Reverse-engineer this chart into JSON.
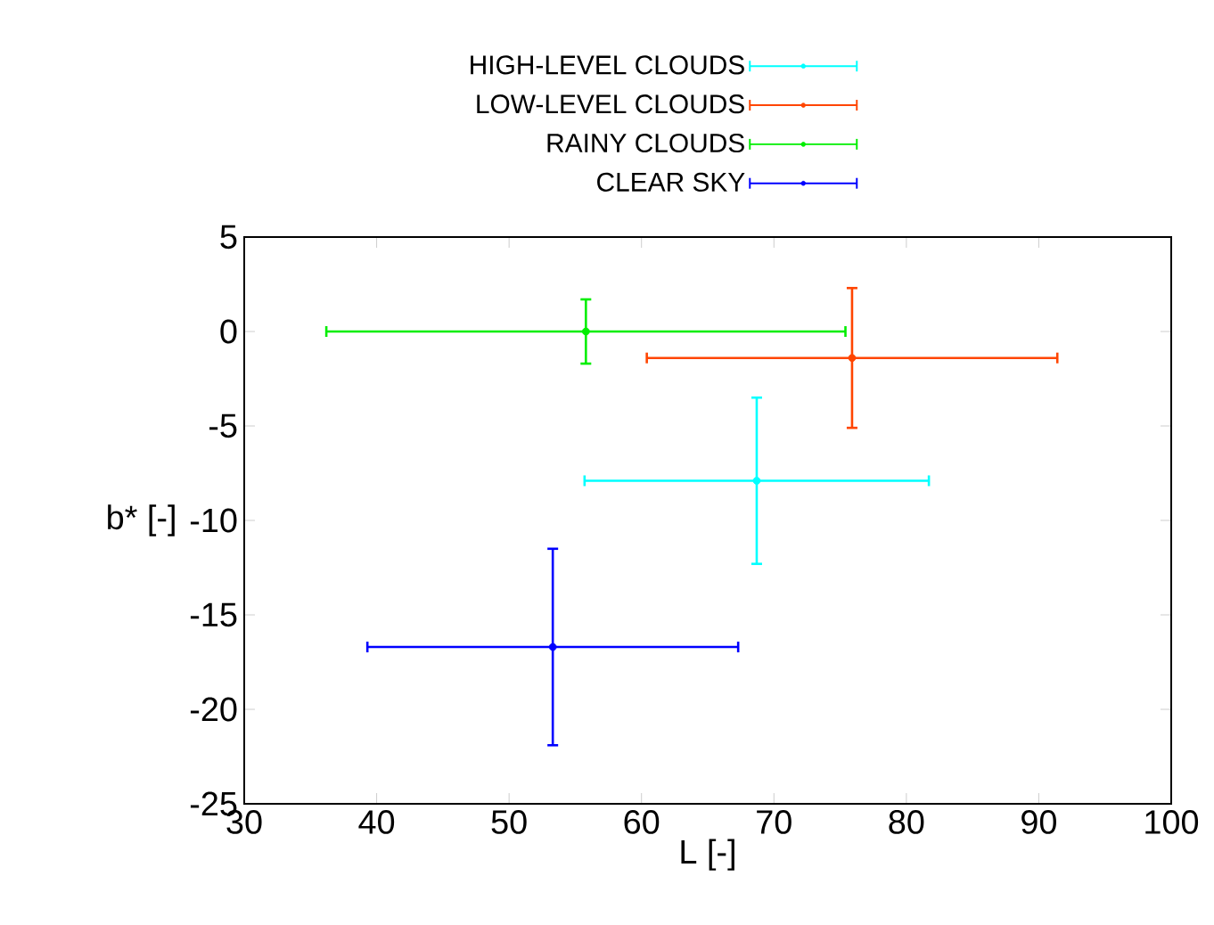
{
  "chart_data": {
    "type": "scatter",
    "xlabel": "L [-]",
    "ylabel": "b* [-]",
    "xlim": [
      30,
      100
    ],
    "xticks": [
      30,
      40,
      50,
      60,
      70,
      80,
      90,
      100
    ],
    "ylim": [
      -25,
      5
    ],
    "yticks": [
      -25,
      -20,
      -15,
      -10,
      -5,
      0,
      5
    ],
    "grid": false,
    "legend": "top",
    "series": [
      {
        "name": "HIGH-LEVEL CLOUDS",
        "color": "#00ffff",
        "x": [
          68.7
        ],
        "values": [
          -7.9
        ],
        "xerrors": [
          13.0
        ],
        "errors": [
          4.4
        ]
      },
      {
        "name": "LOW-LEVEL CLOUDS",
        "color": "#ff4500",
        "x": [
          75.9
        ],
        "values": [
          -1.4
        ],
        "xerrors": [
          15.5
        ],
        "errors": [
          3.7
        ]
      },
      {
        "name": "RAINY CLOUDS",
        "color": "#00ee00",
        "x": [
          55.8
        ],
        "values": [
          0.0
        ],
        "xerrors": [
          19.6
        ],
        "errors": [
          1.7
        ]
      },
      {
        "name": "CLEAR SKY",
        "color": "#0000ff",
        "x": [
          53.3
        ],
        "values": [
          -16.7
        ],
        "xerrors": [
          14.0
        ],
        "errors": [
          5.2
        ]
      }
    ]
  }
}
